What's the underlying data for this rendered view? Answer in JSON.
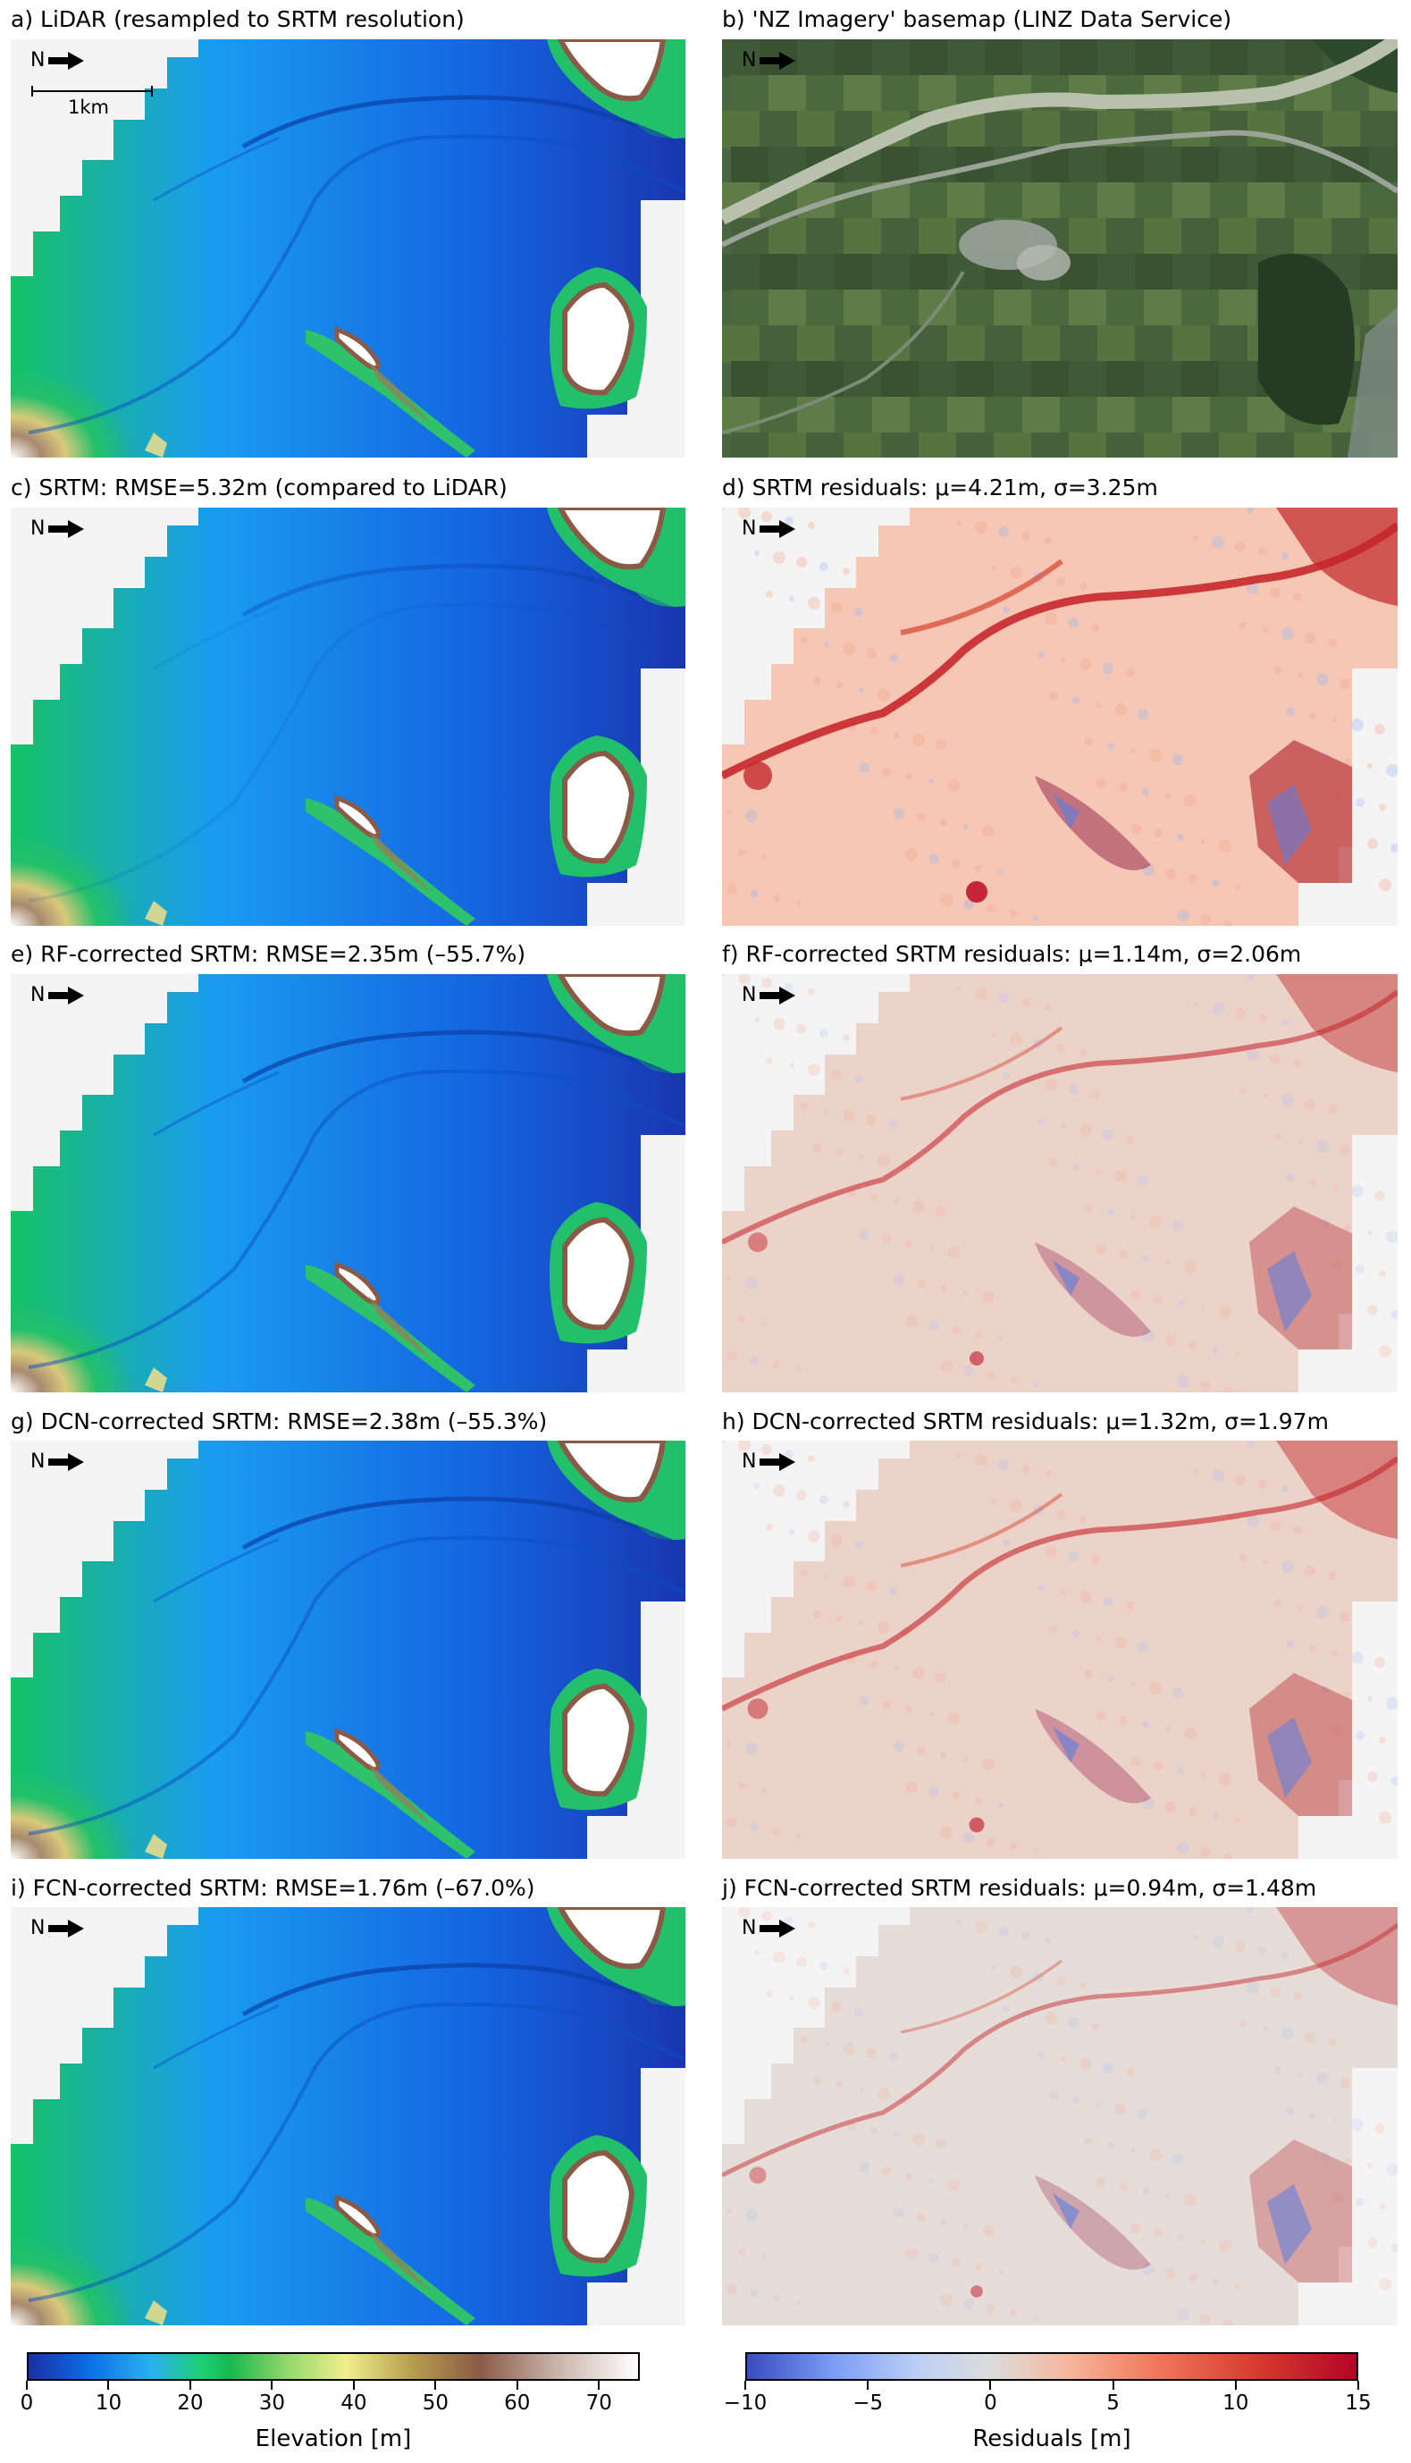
{
  "north_label": "N",
  "scale_label": "1km",
  "panels": [
    {
      "id": "a",
      "title": "a) LiDAR (resampled to SRTM resolution)",
      "kind": "elevation",
      "variant": "lidar"
    },
    {
      "id": "b",
      "title": "b) 'NZ Imagery' basemap (LINZ Data Service)",
      "kind": "imagery"
    },
    {
      "id": "c",
      "title": "c) SRTM: RMSE=5.32m (compared to LiDAR)",
      "kind": "elevation",
      "variant": "srtm"
    },
    {
      "id": "d",
      "title": "d) SRTM residuals: μ=4.21m, σ=3.25m",
      "kind": "residual",
      "strength": 1.0
    },
    {
      "id": "e",
      "title": "e) RF-corrected SRTM: RMSE=2.35m (–55.7%)",
      "kind": "elevation",
      "variant": "corrected"
    },
    {
      "id": "f",
      "title": "f) RF-corrected SRTM residuals: μ=1.14m, σ=2.06m",
      "kind": "residual",
      "strength": 0.5
    },
    {
      "id": "g",
      "title": "g) DCN-corrected SRTM: RMSE=2.38m (–55.3%)",
      "kind": "elevation",
      "variant": "corrected"
    },
    {
      "id": "h",
      "title": "h) DCN-corrected SRTM residuals: μ=1.32m, σ=1.97m",
      "kind": "residual",
      "strength": 0.55
    },
    {
      "id": "i",
      "title": "i) FCN-corrected SRTM: RMSE=1.76m (–67.0%)",
      "kind": "elevation",
      "variant": "corrected"
    },
    {
      "id": "j",
      "title": "j) FCN-corrected SRTM residuals: μ=0.94m, σ=1.48m",
      "kind": "residual",
      "strength": 0.35
    }
  ],
  "colorbars": {
    "elevation": {
      "label": "Elevation [m]",
      "ticks": [
        "0",
        "10",
        "20",
        "30",
        "40",
        "50",
        "60",
        "70"
      ],
      "range": [
        0,
        75
      ],
      "colors": [
        "#1a2fa5",
        "#0b6fe6",
        "#2ab0f0",
        "#1fd07a",
        "#17b84f",
        "#8ed66a",
        "#f0f08c",
        "#b79d4e",
        "#8a5a46",
        "#c7b0a6",
        "#ffffff"
      ]
    },
    "residual": {
      "label": "Residuals [m]",
      "ticks": [
        "−10",
        "−5",
        "0",
        "5",
        "10",
        "15"
      ],
      "range": [
        -10,
        15
      ],
      "colors": [
        "#3a4cc0",
        "#7a9cf4",
        "#bcd0f5",
        "#dcdcdc",
        "#f6b8a0",
        "#f07458",
        "#d63a2e",
        "#b40426"
      ]
    }
  }
}
